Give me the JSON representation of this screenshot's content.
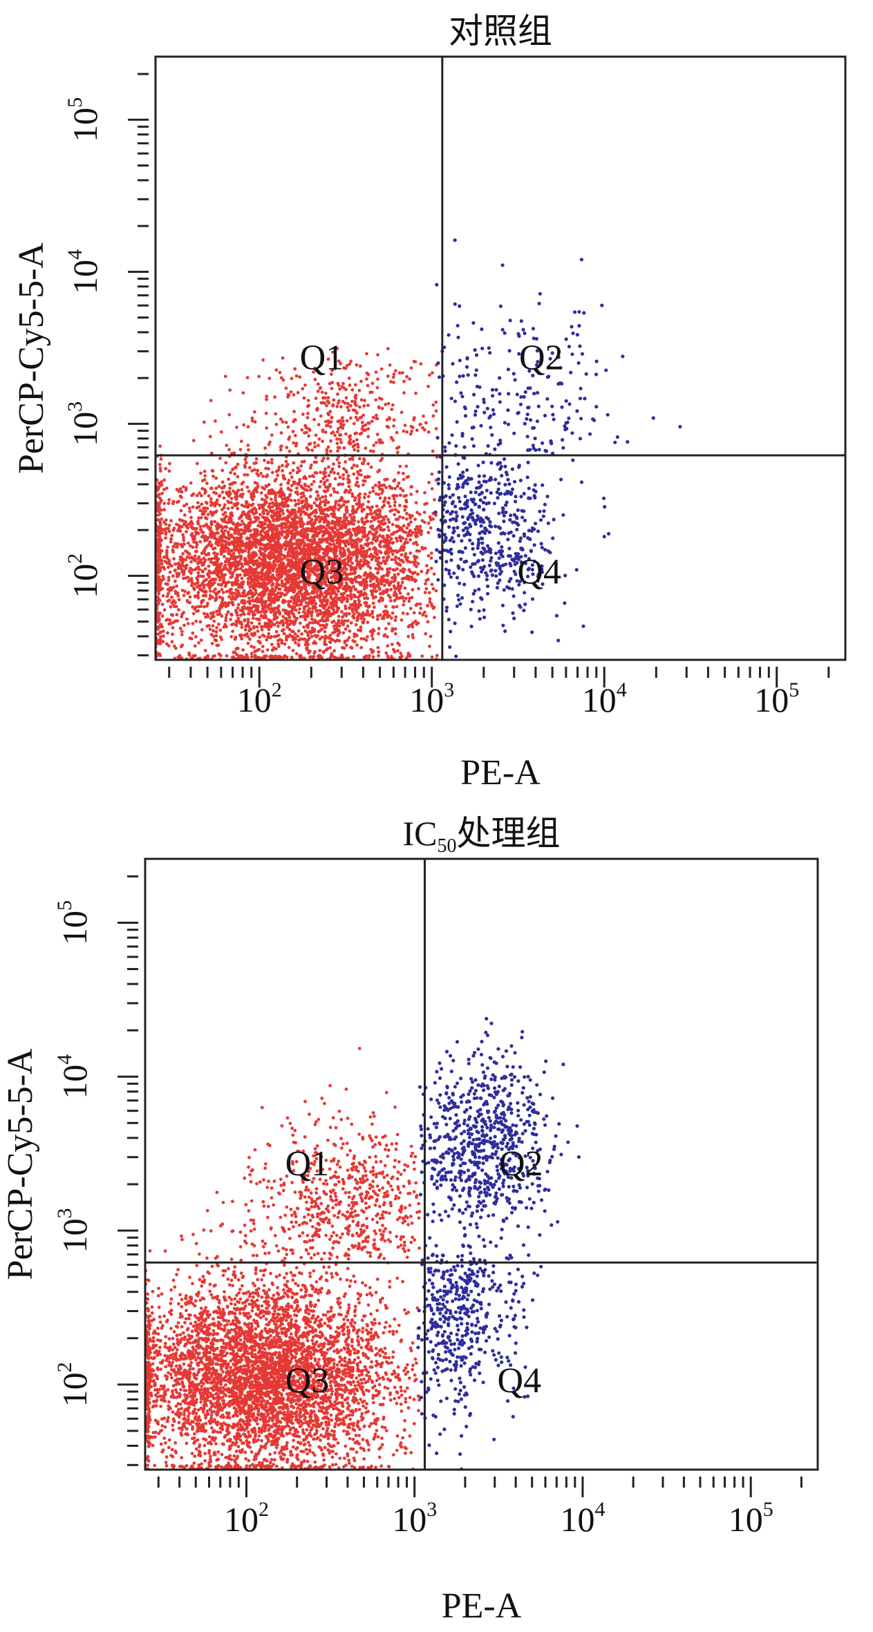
{
  "chart_data": [
    {
      "type": "scatter",
      "title": "对照组",
      "title_sub": "",
      "title_tail": "",
      "xlabel": "PE-A",
      "ylabel": "PerCP-Cy5-5-A",
      "x_scale": "log",
      "y_scale": "log",
      "xlim": [
        25,
        250000
      ],
      "ylim": [
        28,
        260000
      ],
      "x_ticks": [
        {
          "base": "10",
          "exp": "2",
          "value": 100
        },
        {
          "base": "10",
          "exp": "3",
          "value": 1000
        },
        {
          "base": "10",
          "exp": "4",
          "value": 10000
        },
        {
          "base": "10",
          "exp": "5",
          "value": 100000
        }
      ],
      "y_ticks": [
        {
          "base": "10",
          "exp": "2",
          "value": 100
        },
        {
          "base": "10",
          "exp": "3",
          "value": 1000
        },
        {
          "base": "10",
          "exp": "4",
          "value": 10000
        },
        {
          "base": "10",
          "exp": "5",
          "value": 100000
        }
      ],
      "gate": {
        "x": 1150,
        "y": 620
      },
      "quadrants": [
        {
          "label": "Q1",
          "x": 230,
          "y": 2700
        },
        {
          "label": "Q2",
          "x": 4300,
          "y": 2700
        },
        {
          "label": "Q3",
          "x": 230,
          "y": 105
        },
        {
          "label": "Q4",
          "x": 4200,
          "y": 105
        }
      ],
      "colors": {
        "negative": "#e53935",
        "positive": "#2e2e9c",
        "gate": "#222222"
      },
      "populations": [
        {
          "group": "Q3",
          "color": "#e53935",
          "count": 5200,
          "cx_log": 2.2,
          "cy_log": 2.1,
          "sx": 0.42,
          "sy": 0.32,
          "xmax": 1080,
          "ymax": 1200
        },
        {
          "group": "Q1",
          "color": "#e53935",
          "count": 320,
          "cx_log": 2.5,
          "cy_log": 3.05,
          "sx": 0.28,
          "sy": 0.22,
          "xmax": 1080,
          "ymin": 650
        },
        {
          "group": "Q4",
          "color": "#2e2e9c",
          "count": 520,
          "cx_log": 3.3,
          "cy_log": 2.3,
          "sx": 0.22,
          "sy": 0.3,
          "xmin": 1050
        },
        {
          "group": "Q2",
          "color": "#2e2e9c",
          "count": 190,
          "cx_log": 3.5,
          "cy_log": 3.1,
          "sx": 0.3,
          "sy": 0.35,
          "xmin": 1050,
          "ymin": 650
        }
      ]
    },
    {
      "type": "scatter",
      "title": "IC",
      "title_sub": "50",
      "title_tail": "处理组",
      "xlabel": "PE-A",
      "ylabel": "PerCP-Cy5-5-A",
      "x_scale": "log",
      "y_scale": "log",
      "xlim": [
        25,
        250000
      ],
      "ylim": [
        28,
        260000
      ],
      "x_ticks": [
        {
          "base": "10",
          "exp": "2",
          "value": 100
        },
        {
          "base": "10",
          "exp": "3",
          "value": 1000
        },
        {
          "base": "10",
          "exp": "4",
          "value": 10000
        },
        {
          "base": "10",
          "exp": "5",
          "value": 100000
        }
      ],
      "y_ticks": [
        {
          "base": "10",
          "exp": "2",
          "value": 100
        },
        {
          "base": "10",
          "exp": "3",
          "value": 1000
        },
        {
          "base": "10",
          "exp": "4",
          "value": 10000
        },
        {
          "base": "10",
          "exp": "5",
          "value": 100000
        }
      ],
      "gate": {
        "x": 1150,
        "y": 620
      },
      "quadrants": [
        {
          "label": "Q1",
          "x": 230,
          "y": 2700
        },
        {
          "label": "Q2",
          "x": 4300,
          "y": 2700
        },
        {
          "label": "Q3",
          "x": 230,
          "y": 105
        },
        {
          "label": "Q4",
          "x": 4200,
          "y": 105
        }
      ],
      "colors": {
        "negative": "#e53935",
        "positive": "#2e2e9c",
        "gate": "#222222"
      },
      "populations": [
        {
          "group": "Q3",
          "color": "#e53935",
          "count": 4600,
          "cx_log": 2.1,
          "cy_log": 2.05,
          "sx": 0.4,
          "sy": 0.32,
          "xmax": 1080,
          "ymax": 1200
        },
        {
          "group": "Q1",
          "color": "#e53935",
          "count": 620,
          "cx_log": 2.6,
          "cy_log": 3.15,
          "sx": 0.3,
          "sy": 0.28,
          "xmax": 1080,
          "ymin": 650
        },
        {
          "group": "Q2",
          "color": "#2e2e9c",
          "count": 720,
          "cx_log": 3.4,
          "cy_log": 3.55,
          "sx": 0.2,
          "sy": 0.3,
          "xmin": 1050,
          "ymin": 650
        },
        {
          "group": "Q4",
          "color": "#2e2e9c",
          "count": 460,
          "cx_log": 3.25,
          "cy_log": 2.5,
          "sx": 0.18,
          "sy": 0.33,
          "xmin": 1050,
          "ymax": 700
        }
      ]
    }
  ]
}
